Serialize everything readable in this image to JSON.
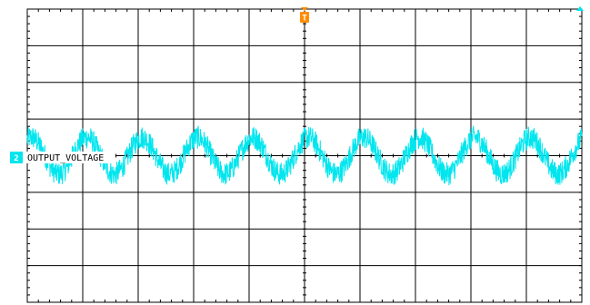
{
  "chart_data": {
    "type": "line",
    "grid": true,
    "x_divisions": 10,
    "y_divisions": 8,
    "series": [
      {
        "name": "OUTPUT_VOLTAGE",
        "channel": "2",
        "color": "#00e5ee",
        "cycles": 10,
        "phase_cycles": 0.18,
        "amplitude_div": 0.5,
        "noise_div": 0.32,
        "offset_div": 0.0
      }
    ],
    "channel_label": "OUTPUT_VOLTAGE",
    "channel_number": "2",
    "trigger_marker": "T"
  },
  "colors": {
    "grid": "#000000",
    "trace": "#00e5ee",
    "trigger": "#ff8c00",
    "channel_badge": "#00e5ee"
  }
}
